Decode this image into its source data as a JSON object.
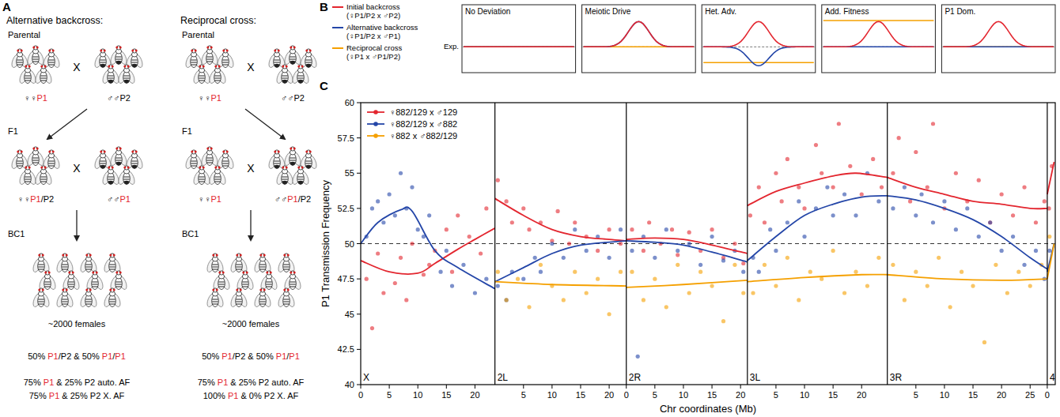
{
  "panel_a": {
    "label": "A",
    "highlight": "P1",
    "cross_symbol": "X",
    "columns": [
      {
        "title": "Alternative backcross:",
        "parental": "Parental",
        "parent_female": "♀♀P1",
        "parent_male": "♂♂P2",
        "f1": "F1",
        "f1_female": "♀♀P1/P2",
        "f1_male": "♂♂P1",
        "bc1": "BC1",
        "bc1_count": "~2000 females",
        "summary": [
          "50% P1/P2 & 50% P1/P1",
          "75% P1 & 25% P2 auto. AF",
          "75% P1 & 25% P2 X. AF"
        ]
      },
      {
        "title": "Reciprocal cross:",
        "parental": "Parental",
        "parent_female": "♀♀P1",
        "parent_male": "♂♂P2",
        "f1": "F1",
        "f1_female": "♀♀P1",
        "f1_male": "♂♂P1/P2",
        "bc1": "BC1",
        "bc1_count": "~2000 females",
        "summary": [
          "50% P1/P2 & 50% P1/P1",
          "75% P1 & 25% P2 auto. AF",
          "100% P1 & 0% P2 X. AF"
        ]
      }
    ]
  },
  "panel_b": {
    "label": "B",
    "expected_label": "Exp.",
    "legend": [
      {
        "name": "Initial backcross",
        "cross": "(♀P1/P2 x ♂P2)",
        "color": "#e3262f"
      },
      {
        "name": "Alternative backcross",
        "cross": "(♀P1/P2 x ♂P1)",
        "color": "#2446a8"
      },
      {
        "name": "Reciprocal cross",
        "cross": "(♀P1 x ♂P1/P2)",
        "color": "#f5a000"
      }
    ],
    "boxes": [
      "No Deviation",
      "Meiotic Drive",
      "Het. Adv.",
      "Add. Fitness",
      "P1 Dom."
    ]
  },
  "chart_data": {
    "type": "scatter",
    "label": "C",
    "ylabel": "P1 Transmission Frequency",
    "xlabel": "Chr coordinates (Mb)",
    "ylim": [
      40,
      60
    ],
    "yticks": [
      40,
      42.5,
      45,
      47.5,
      50,
      52.5,
      55,
      57.5,
      60
    ],
    "expected": 50,
    "legend": "upper left",
    "grid": false,
    "arms": [
      {
        "name": "X",
        "xlim": [
          0,
          23.5
        ],
        "xticks": [
          0,
          5,
          10,
          15,
          20
        ]
      },
      {
        "name": "2L",
        "xlim": [
          0,
          23
        ],
        "xticks": [
          5,
          10,
          15,
          20
        ]
      },
      {
        "name": "2R",
        "xlim": [
          0,
          21.2
        ],
        "xticks": [
          0,
          5,
          10,
          15,
          20
        ]
      },
      {
        "name": "3L",
        "xlim": [
          0,
          24.5
        ],
        "xticks": [
          5,
          10,
          15,
          20
        ]
      },
      {
        "name": "3R",
        "xlim": [
          0,
          28
        ],
        "xticks": [
          5,
          10,
          15,
          20,
          25
        ]
      },
      {
        "name": "4",
        "xlim": [
          0,
          1.4
        ],
        "xticks": [
          0
        ]
      }
    ],
    "series": [
      {
        "name": "♀882/129 x ♂129",
        "color": "#e3262f",
        "marker": "circle",
        "arms": [
          {
            "x": [
              1,
              2,
              3,
              4,
              6,
              7,
              8,
              9,
              11,
              12,
              13,
              15,
              16,
              17,
              19,
              21,
              22
            ],
            "values": [
              47.5,
              44,
              49.3,
              46.5,
              47.2,
              49,
              46,
              50,
              47.8,
              48.5,
              49.5,
              51,
              48,
              52,
              50.5,
              49.3,
              52.5
            ],
            "fit_x": [
              0,
              5,
              10,
              13,
              17,
              20,
              23.5
            ],
            "fit": [
              48.8,
              48.0,
              47.9,
              48.6,
              49.6,
              50.3,
              51.1
            ]
          },
          {
            "x": [
              0.5,
              2,
              3,
              5,
              6,
              8,
              10,
              11,
              13,
              14,
              16,
              18,
              20,
              22
            ],
            "values": [
              54.5,
              53,
              51.5,
              52.5,
              51,
              51.5,
              50.2,
              52.3,
              50,
              51.5,
              50.5,
              49.5,
              51,
              50
            ],
            "fit_x": [
              0,
              5,
              10,
              15,
              20,
              23
            ],
            "fit": [
              53.2,
              52,
              51,
              50.5,
              50.3,
              50.2
            ]
          },
          {
            "x": [
              1,
              3,
              4,
              6,
              8,
              9,
              11,
              13,
              15,
              17,
              19,
              20.5
            ],
            "values": [
              51,
              49.5,
              51.5,
              50,
              51,
              49.2,
              50.8,
              49.5,
              51,
              49,
              50,
              48.6
            ],
            "fit_x": [
              0,
              5,
              10,
              15,
              21.2
            ],
            "fit": [
              50.3,
              50.4,
              50.3,
              49.9,
              49.3
            ]
          },
          {
            "x": [
              0.5,
              2,
              3,
              5,
              6,
              7,
              9,
              10,
              12,
              13,
              15,
              16,
              18,
              20,
              22,
              23.5
            ],
            "values": [
              52,
              54,
              51.5,
              55,
              53,
              56,
              54,
              52.5,
              57,
              55,
              54,
              58.5,
              55.5,
              53.5,
              56,
              54
            ],
            "fit_x": [
              0,
              5,
              10,
              15,
              19,
              24.5
            ],
            "fit": [
              52.7,
              53.7,
              54.3,
              54.8,
              55,
              54.7
            ]
          },
          {
            "x": [
              1,
              2,
              4,
              5,
              7,
              8,
              10,
              12,
              14,
              16,
              18,
              20,
              22,
              24,
              26,
              27.5
            ],
            "values": [
              55,
              57.5,
              53,
              56.5,
              54,
              58.5,
              52.5,
              55,
              53,
              54.5,
              51.5,
              53.5,
              52,
              54,
              51.5,
              53
            ],
            "fit_x": [
              0,
              5,
              10,
              15,
              20,
              25,
              28
            ],
            "fit": [
              54.7,
              54,
              53.5,
              53,
              52.8,
              52.5,
              52.5
            ]
          },
          {
            "x": [
              0.3,
              0.8
            ],
            "values": [
              52.5,
              55.5
            ],
            "fit_x": [
              0,
              1.2
            ],
            "fit": [
              53.5,
              55.8
            ]
          }
        ]
      },
      {
        "name": "♀882/129 x ♂882",
        "color": "#2446a8",
        "marker": "circle",
        "arms": [
          {
            "x": [
              1,
              2,
              3,
              4,
              5,
              6,
              7,
              8,
              9,
              10,
              11,
              12,
              14,
              15,
              16,
              18,
              20,
              22
            ],
            "values": [
              50.5,
              52.5,
              53,
              51.5,
              53.5,
              52,
              55,
              52.5,
              54,
              51,
              50.5,
              52,
              48,
              49.5,
              47,
              48.5,
              46.5,
              47.5
            ],
            "fit_x": [
              0,
              3,
              7,
              9,
              13,
              17,
              23.5
            ],
            "fit": [
              50,
              51.5,
              52.4,
              52.3,
              49.5,
              48.3,
              46.8
            ]
          },
          {
            "x": [
              0.5,
              2,
              3,
              5,
              7,
              8,
              10,
              12,
              14,
              16,
              18,
              20,
              22
            ],
            "values": [
              47,
              46,
              48,
              47.5,
              49,
              48,
              50,
              49,
              51,
              49.5,
              50.5,
              49,
              51
            ],
            "fit_x": [
              0,
              5,
              10,
              15,
              23
            ],
            "fit": [
              47.3,
              48.3,
              49.3,
              49.9,
              50.2
            ]
          },
          {
            "x": [
              1,
              2,
              3,
              5,
              7,
              9,
              11,
              13,
              15,
              17,
              19,
              20.5
            ],
            "values": [
              49.5,
              42,
              50.5,
              49,
              51,
              49.5,
              50,
              48.5,
              50.5,
              48.8,
              49.5,
              48
            ],
            "fit_x": [
              0,
              5,
              10,
              15,
              21.2
            ],
            "fit": [
              50.2,
              50.1,
              49.9,
              49.4,
              48.7
            ]
          },
          {
            "x": [
              1,
              2,
              4,
              5,
              7,
              9,
              10,
              12,
              14,
              15,
              17,
              19,
              21,
              23
            ],
            "values": [
              49,
              48,
              51,
              49.5,
              51.5,
              53,
              50.5,
              52.5,
              54,
              52,
              53.5,
              52,
              55,
              53
            ],
            "fit_x": [
              0,
              5,
              10,
              15,
              20,
              24.5
            ],
            "fit": [
              48.8,
              50.5,
              52,
              52.8,
              53.3,
              53.4
            ]
          },
          {
            "x": [
              1,
              3,
              5,
              6,
              8,
              10,
              12,
              14,
              16,
              18,
              20,
              22,
              24,
              26,
              27.5
            ],
            "values": [
              52.5,
              54,
              52,
              53.5,
              51.5,
              53,
              51,
              52.5,
              50.5,
              51.5,
              49.5,
              50.5,
              48.5,
              49.5,
              47.5
            ],
            "fit_x": [
              0,
              5,
              10,
              15,
              20,
              25,
              28
            ],
            "fit": [
              53.4,
              53.1,
              52.5,
              51.7,
              50.5,
              49,
              48.2
            ]
          },
          {
            "x": [
              0.4
            ],
            "values": [
              49.5
            ],
            "fit_x": [
              0,
              1.2
            ],
            "fit": [
              48,
              50
            ]
          }
        ]
      },
      {
        "name": "♀882 x ♂882/129",
        "color": "#f5a000",
        "marker": "circle",
        "arms": [
          {
            "x": [],
            "values": [],
            "fit_x": [],
            "fit": []
          },
          {
            "x": [
              0.5,
              2,
              4,
              6,
              8,
              10,
              12,
              14,
              16,
              18,
              20,
              22
            ],
            "values": [
              48,
              46,
              47.5,
              45.5,
              48.5,
              47,
              46,
              48,
              46.5,
              47.5,
              45,
              48
            ],
            "fit_x": [
              0,
              10,
              23
            ],
            "fit": [
              47.3,
              47.1,
              47.0
            ]
          },
          {
            "x": [
              1,
              3,
              5,
              7,
              9,
              11,
              13,
              15,
              17,
              19,
              20.5
            ],
            "values": [
              48,
              46,
              47.5,
              45.5,
              48.5,
              46.5,
              48,
              47,
              44.5,
              48.5,
              46.5
            ],
            "fit_x": [
              0,
              10,
              21.2
            ],
            "fit": [
              46.9,
              47.1,
              47.4
            ]
          },
          {
            "x": [
              1,
              3,
              5,
              7,
              9,
              11,
              13,
              15,
              17,
              19,
              21,
              23
            ],
            "values": [
              46.5,
              48.5,
              47,
              49,
              46,
              48,
              47.5,
              49.5,
              46.5,
              48,
              47,
              49
            ],
            "fit_x": [
              0,
              10,
              20,
              24.5
            ],
            "fit": [
              47.3,
              47.6,
              47.8,
              47.8
            ]
          },
          {
            "x": [
              1,
              3,
              5,
              7,
              9,
              11,
              13,
              15,
              17,
              19,
              21,
              23,
              25,
              27
            ],
            "values": [
              48.5,
              46,
              48,
              47,
              49,
              45.5,
              48,
              47,
              43,
              48.5,
              46.5,
              48,
              47,
              48.5
            ],
            "fit_x": [
              0,
              10,
              20,
              28
            ],
            "fit": [
              47.8,
              47.5,
              47.4,
              47.5
            ]
          },
          {
            "x": [
              0.4
            ],
            "values": [
              50.5
            ],
            "fit_x": [
              0,
              1.2
            ],
            "fit": [
              47.5,
              50
            ]
          }
        ]
      }
    ]
  }
}
